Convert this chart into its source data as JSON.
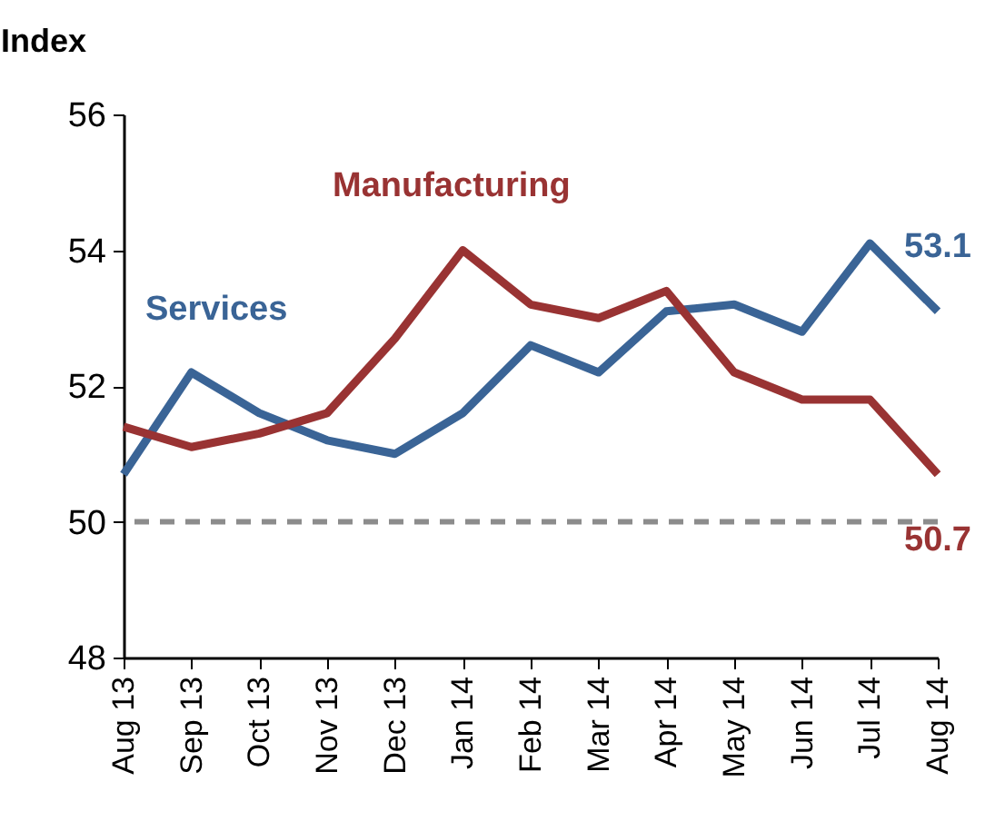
{
  "chart_data": {
    "type": "line",
    "ylabel": "Index",
    "categories": [
      "Aug 13",
      "Sep 13",
      "Oct 13",
      "Nov 13",
      "Dec 13",
      "Jan 14",
      "Feb 14",
      "Mar 14",
      "Apr 14",
      "May 14",
      "Jun 14",
      "Jul 14",
      "Aug 14"
    ],
    "series": [
      {
        "name": "Services",
        "color": "#3a6496",
        "values": [
          50.7,
          52.2,
          51.6,
          51.2,
          51.0,
          51.6,
          52.6,
          52.2,
          53.1,
          53.2,
          52.8,
          54.1,
          53.1
        ],
        "value_labels": [
          null,
          null,
          null,
          null,
          null,
          null,
          null,
          null,
          null,
          null,
          null,
          null,
          "53.1"
        ]
      },
      {
        "name": "Manufacturing",
        "color": "#993333",
        "values": [
          51.4,
          51.1,
          51.3,
          51.6,
          52.7,
          54.0,
          53.2,
          53.0,
          53.4,
          52.2,
          51.8,
          51.8,
          50.7
        ],
        "value_labels": [
          null,
          null,
          null,
          null,
          null,
          null,
          null,
          null,
          null,
          null,
          null,
          null,
          "50.7"
        ]
      }
    ],
    "ylim": [
      48,
      56
    ],
    "yticks": [
      48,
      50,
      52,
      54,
      56
    ],
    "ref_lines": [
      {
        "axis": "y",
        "value": 50,
        "color": "#8c8c8c",
        "line_style": "dashed"
      }
    ],
    "grid": false,
    "marker": "none",
    "line_style": "solid"
  }
}
